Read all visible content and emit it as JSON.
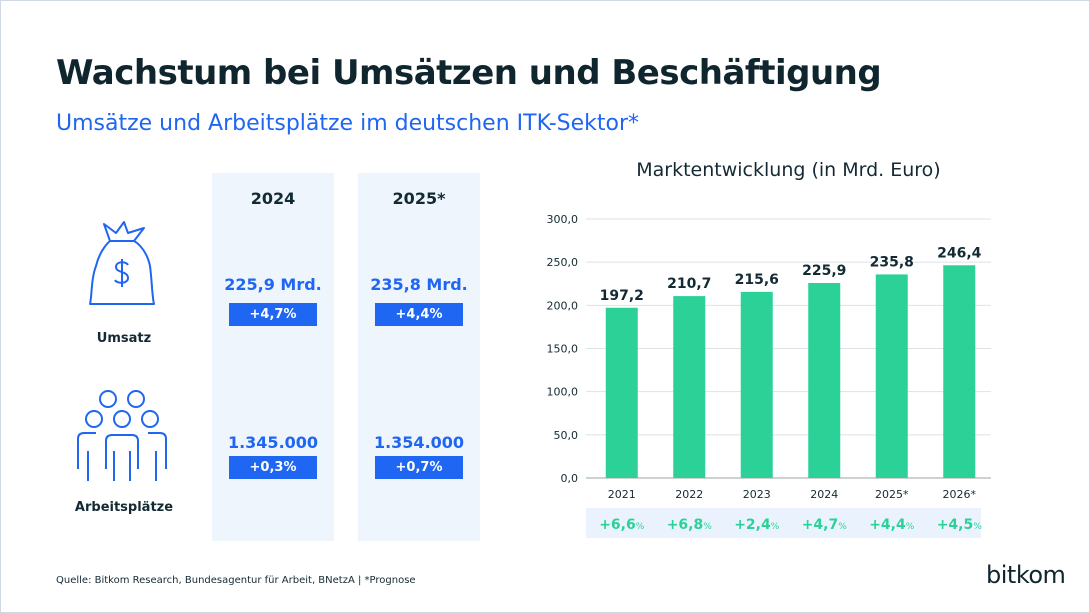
{
  "header": {
    "title": "Wachstum bei Umsätzen und Beschäftigung",
    "subtitle": "Umsätze und Arbeitsplätze im deutschen ITK-Sektor*"
  },
  "table": {
    "columns": [
      "2024",
      "2025*"
    ],
    "rows": [
      {
        "label": "Umsatz",
        "icon": "money-bag-icon",
        "values": [
          "225,9 Mrd.",
          "235,8 Mrd."
        ],
        "changes": [
          "+4,7%",
          "+4,4%"
        ]
      },
      {
        "label": "Arbeitsplätze",
        "icon": "people-group-icon",
        "values": [
          "1.345.000",
          "1.354.000"
        ],
        "changes": [
          "+0,3%",
          "+0,7%"
        ]
      }
    ]
  },
  "chart_data": {
    "type": "bar",
    "title": "Marktentwicklung (in Mrd. Euro)",
    "categories": [
      "2021",
      "2022",
      "2023",
      "2024",
      "2025*",
      "2026*"
    ],
    "values": [
      197.2,
      210.7,
      215.6,
      225.9,
      235.8,
      246.4
    ],
    "value_labels": [
      "197,2",
      "210,7",
      "215,6",
      "225,9",
      "235,8",
      "246,4"
    ],
    "growth": [
      {
        "num": "+6,6",
        "unit": "%"
      },
      {
        "num": "+6,8",
        "unit": "%"
      },
      {
        "num": "+2,4",
        "unit": "%"
      },
      {
        "num": "+4,7",
        "unit": "%"
      },
      {
        "num": "+4,4",
        "unit": "%"
      },
      {
        "num": "+4,5",
        "unit": "%"
      }
    ],
    "ylim": [
      0,
      300
    ],
    "yticks": [
      "0,0",
      "50,0",
      "100,0",
      "150,0",
      "200,0",
      "250,0",
      "300,0"
    ],
    "grid": true,
    "colors": {
      "bar": "#2bd197",
      "growth": "#2bd197",
      "growth_bg": "#eaf3fd"
    }
  },
  "footer": {
    "source": "Quelle: Bitkom Research, Bundesagentur für Arbeit, BNetzA | *Prognose",
    "logo": "bitkom"
  },
  "colors": {
    "accent": "#1f66f2",
    "title": "#10262e",
    "column_bg": "#eef5fd"
  }
}
